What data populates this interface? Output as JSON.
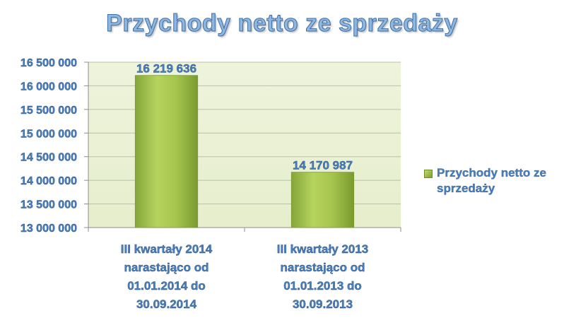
{
  "chart_data": {
    "type": "bar",
    "title": "Przychody netto ze sprzedaży",
    "categories": [
      "III kwartały 2014 narastająco od 01.01.2014 do 30.09.2014",
      "III kwartały 2013 narastająco od 01.01.2013 do 30.09.2013"
    ],
    "category_lines": [
      [
        "III kwartały 2014",
        "narastająco od",
        "01.01.2014 do",
        "30.09.2014"
      ],
      [
        "III kwartały 2013",
        "narastająco od",
        "01.01.2013 do",
        "30.09.2013"
      ]
    ],
    "series": [
      {
        "name": "Przychody netto ze sprzedaży",
        "values": [
          16219636,
          14170987
        ],
        "labels": [
          "16 219 636",
          "14 170 987"
        ],
        "color": "#9bbb59"
      }
    ],
    "ylim": [
      13000000,
      16500000
    ],
    "yticks": [
      13000000,
      13500000,
      14000000,
      14500000,
      15000000,
      15500000,
      16000000,
      16500000
    ],
    "ytick_labels": [
      "13 000 000",
      "13 500 000",
      "14 000 000",
      "14 500 000",
      "15 000 000",
      "15 500 000",
      "16 000 000",
      "16 500 000"
    ],
    "grid": true,
    "legend_position": "right",
    "plot_background": "#ecf2d8"
  },
  "legend": {
    "label": "Przychody netto ze sprzedaży"
  }
}
